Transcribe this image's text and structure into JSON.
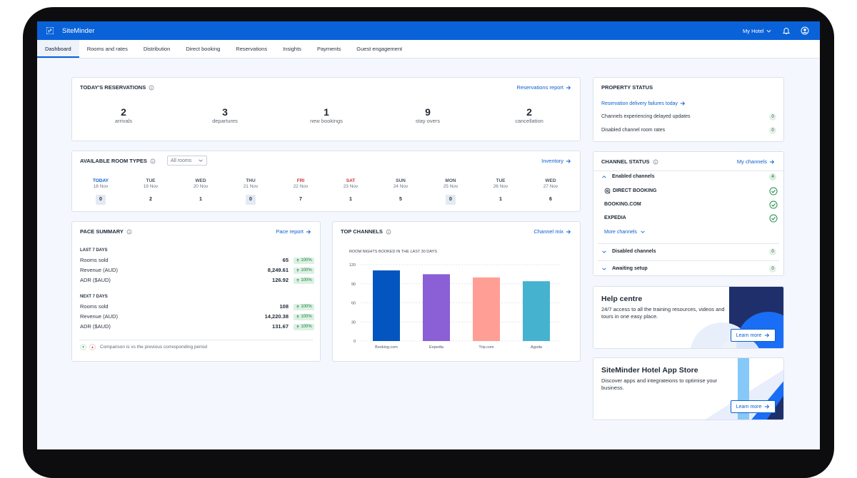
{
  "header": {
    "brand": "SiteMinder",
    "hotel": "My Hotel"
  },
  "nav": {
    "tabs": [
      "Dashboard",
      "Rooms and rates",
      "Distribution",
      "Direct booking",
      "Reservations",
      "Insights",
      "Payments",
      "Guest engagement"
    ]
  },
  "reservations": {
    "title": "TODAY'S RESERVATIONS",
    "link": "Reservations report",
    "stats": [
      {
        "value": 2,
        "label": "arrivals"
      },
      {
        "value": 3,
        "label": "departures"
      },
      {
        "value": 1,
        "label": "new bookings"
      },
      {
        "value": 9,
        "label": "stay overs"
      },
      {
        "value": 2,
        "label": "cancellation"
      }
    ]
  },
  "room_types": {
    "title": "AVAILABLE ROOM TYPES",
    "filter": "All rooms",
    "link": "Inventory",
    "days": [
      {
        "day": "TODAY",
        "date": "18 Nov",
        "count": 0
      },
      {
        "day": "TUE",
        "date": "19 Nov",
        "count": 2
      },
      {
        "day": "WED",
        "date": "20 Nov",
        "count": 1
      },
      {
        "day": "THU",
        "date": "21 Nov",
        "count": 0
      },
      {
        "day": "FRI",
        "date": "22 Nov",
        "count": 7
      },
      {
        "day": "SAT",
        "date": "23 Nov",
        "count": 1
      },
      {
        "day": "SUN",
        "date": "24 Nov",
        "count": 5
      },
      {
        "day": "MON",
        "date": "25 Nov",
        "count": 0
      },
      {
        "day": "TUE",
        "date": "26 Nov",
        "count": 1
      },
      {
        "day": "WED",
        "date": "27 Nov",
        "count": 6
      }
    ]
  },
  "pace": {
    "title": "PACE SUMMARY",
    "link": "Pace report",
    "groups": [
      {
        "heading": "LAST 7 DAYS",
        "rows": [
          {
            "label": "Rooms sold",
            "value": "65",
            "change": "100%"
          },
          {
            "label": "Revenue (AUD)",
            "value": "8,249.61",
            "change": "100%"
          },
          {
            "label": "ADR ($AUD)",
            "value": "126.92",
            "change": "100%"
          }
        ]
      },
      {
        "heading": "NEXT 7 DAYS",
        "rows": [
          {
            "label": "Rooms sold",
            "value": "108",
            "change": "100%"
          },
          {
            "label": "Revenue (AUD)",
            "value": "14,220.38",
            "change": "100%"
          },
          {
            "label": "ADR ($AUD)",
            "value": "131.67",
            "change": "100%"
          }
        ]
      }
    ],
    "note": "Comparison is vs the previous corresponding period"
  },
  "top_channels": {
    "title": "TOP CHANNELS",
    "link": "Channel mix"
  },
  "chart_data": {
    "type": "bar",
    "title": "ROOM NIGHTS BOOKED IN THE LAST 30 DAYS",
    "categories": [
      "Booking.com",
      "Expedia",
      "Trip.com",
      "Agoda"
    ],
    "values": [
      111,
      105,
      100,
      94
    ],
    "colors": [
      "#0455bf",
      "#8b5fd6",
      "#ff9e94",
      "#45b2d0"
    ],
    "ylim": [
      0,
      120
    ],
    "yticks": [
      0,
      30,
      60,
      90,
      120
    ],
    "grid": true
  },
  "property_status": {
    "title": "PROPERTY STATUS",
    "link": "Reservation delivery failures today",
    "rows": [
      {
        "label": "Channels experiencing delayed updates",
        "count": 0
      },
      {
        "label": "Disabled channel room rates",
        "count": 0
      }
    ]
  },
  "channel_status": {
    "title": "CHANNEL STATUS",
    "link": "My channels",
    "groups": [
      {
        "label": "Enabled channels",
        "count": 4,
        "channels": [
          "DIRECT BOOKING",
          "BOOKING.COM",
          "EXPEDIA"
        ],
        "more": "More channels"
      },
      {
        "label": "Disabled channels",
        "count": 0
      },
      {
        "label": "Awaiting setup",
        "count": 0
      }
    ]
  },
  "promos": [
    {
      "title": "Help centre",
      "text": "24/7 access to all the training resources, videos and tours in one easy place.",
      "button": "Learn more"
    },
    {
      "title": "SiteMinder Hotel App Store",
      "text": "Discover apps and integrateions to optimise your business.",
      "button": "Learn more"
    }
  ]
}
